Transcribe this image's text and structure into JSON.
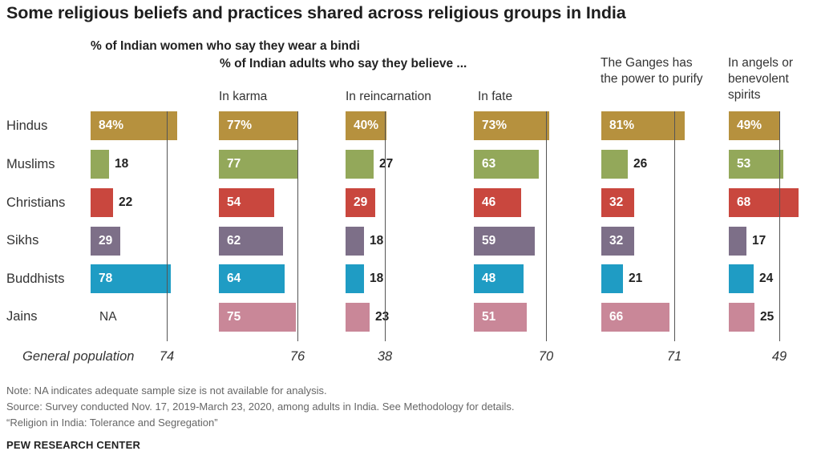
{
  "chart_data": {
    "type": "bar",
    "title": "Some religious beliefs and practices shared across religious groups in India",
    "group_header": "% of Indian adults who say they believe ...",
    "categories": [
      "Hindus",
      "Muslims",
      "Christians",
      "Sikhs",
      "Buddhists",
      "Jains"
    ],
    "general_population_label": "General population",
    "na_note": "NA",
    "series": [
      {
        "name": "% of Indian women who say they wear a bindi",
        "values": [
          84,
          18,
          22,
          29,
          78,
          null
        ],
        "labels": [
          "84%",
          "18",
          "22",
          "29",
          "78",
          "NA"
        ],
        "general_population": 74,
        "general_population_label": "74"
      },
      {
        "name": "In karma",
        "values": [
          77,
          77,
          54,
          62,
          64,
          75
        ],
        "labels": [
          "77%",
          "77",
          "54",
          "62",
          "64",
          "75"
        ],
        "general_population": 76,
        "general_population_label": "76"
      },
      {
        "name": "In reincarnation",
        "values": [
          40,
          27,
          29,
          18,
          18,
          23
        ],
        "labels": [
          "40%",
          "27",
          "29",
          "18",
          "18",
          "23"
        ],
        "general_population": 38,
        "general_population_label": "38"
      },
      {
        "name": "In fate",
        "values": [
          73,
          63,
          46,
          59,
          48,
          51
        ],
        "labels": [
          "73%",
          "63",
          "46",
          "59",
          "48",
          "51"
        ],
        "general_population": 70,
        "general_population_label": "70"
      },
      {
        "name": "The Ganges has the power to purify",
        "values": [
          81,
          26,
          32,
          32,
          21,
          66
        ],
        "labels": [
          "81%",
          "26",
          "32",
          "32",
          "21",
          "66"
        ],
        "general_population": 71,
        "general_population_label": "71"
      },
      {
        "name": "In angels or benevolent spirits",
        "values": [
          49,
          53,
          68,
          17,
          24,
          25
        ],
        "labels": [
          "49%",
          "53",
          "68",
          "17",
          "24",
          "25"
        ],
        "general_population": 49,
        "general_population_label": "49"
      }
    ],
    "category_colors": [
      "#b6913e",
      "#93a85a",
      "#c9473e",
      "#7d6f88",
      "#1f9cc4",
      "#c98798"
    ],
    "notes": [
      "Note: NA indicates adequate sample size is not available for analysis.",
      "Source: Survey conducted Nov. 17, 2019-March 23, 2020, among adults in India. See Methodology for details.",
      "“Religion in India: Tolerance and Segregation”"
    ],
    "source_brand": "PEW RESEARCH CENTER"
  }
}
